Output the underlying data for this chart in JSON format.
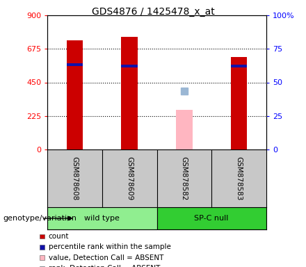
{
  "title": "GDS4876 / 1425478_x_at",
  "samples": [
    "GSM878608",
    "GSM878609",
    "GSM878582",
    "GSM878583"
  ],
  "groups": [
    {
      "label": "wild type",
      "color": "#90EE90",
      "samples": [
        0,
        1
      ]
    },
    {
      "label": "SP-C null",
      "color": "#32CD32",
      "samples": [
        2,
        3
      ]
    }
  ],
  "count_values": [
    730,
    755,
    null,
    620
  ],
  "percentile_values": [
    565,
    555,
    null,
    555
  ],
  "absent_value_values": [
    null,
    null,
    265,
    null
  ],
  "absent_rank_values": [
    null,
    null,
    390,
    null
  ],
  "left_ylim": [
    0,
    900
  ],
  "left_yticks": [
    0,
    225,
    450,
    675,
    900
  ],
  "right_yticks": [
    0,
    225,
    450,
    675,
    900
  ],
  "right_yticklabels": [
    "0",
    "25",
    "50",
    "75",
    "100%"
  ],
  "count_color": "#CC0000",
  "percentile_color": "#1111AA",
  "absent_value_color": "#FFB6C1",
  "absent_rank_color": "#9BB7D4",
  "plot_bg": "white",
  "label_bg": "#C8C8C8",
  "genotype_label": "genotype/variation",
  "legend_items": [
    {
      "color": "#CC0000",
      "label": "count"
    },
    {
      "color": "#1111AA",
      "label": "percentile rank within the sample"
    },
    {
      "color": "#FFB6C1",
      "label": "value, Detection Call = ABSENT"
    },
    {
      "color": "#9BB7D4",
      "label": "rank, Detection Call = ABSENT"
    }
  ]
}
